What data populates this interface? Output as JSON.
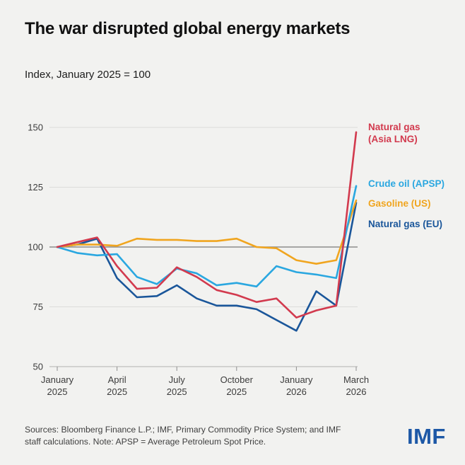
{
  "header": {
    "title": "The war disrupted global energy markets",
    "subtitle": "Index, January 2025 = 100"
  },
  "chart_data": {
    "type": "line",
    "title": "The war disrupted global energy markets",
    "subtitle": "Index, January 2025 = 100",
    "ylim": [
      50,
      150
    ],
    "y_ticks": [
      50,
      75,
      100,
      125,
      150
    ],
    "baseline_value": 100,
    "grid": "horizontal",
    "n_points": 16,
    "x_tick_positions": [
      0,
      3,
      6,
      9,
      12,
      15
    ],
    "x_tick_labels": [
      [
        "January",
        "2025"
      ],
      [
        "April",
        "2025"
      ],
      [
        "July",
        "2025"
      ],
      [
        "October",
        "2025"
      ],
      [
        "January",
        "2026"
      ],
      [
        "March",
        "2026"
      ]
    ],
    "legend_position": "right",
    "series": [
      {
        "name": "Natural gas (Asia LNG)",
        "color": "#d23a4e",
        "values": [
          100,
          102,
          104,
          92,
          82.5,
          83,
          91.5,
          87.5,
          82,
          80,
          77,
          78.5,
          70.5,
          73.5,
          75.5,
          148
        ]
      },
      {
        "name": "Crude oil (APSP)",
        "color": "#2aa7e0",
        "values": [
          100,
          97.5,
          96.5,
          97,
          87.5,
          84.5,
          91,
          89,
          84,
          85,
          83.5,
          92,
          89.5,
          88.5,
          87,
          125.5
        ]
      },
      {
        "name": "Gasoline (US)",
        "color": "#f0a51f",
        "values": [
          100,
          101,
          101,
          100.5,
          103.5,
          103,
          103,
          102.5,
          102.5,
          103.5,
          100,
          99.5,
          94.5,
          93,
          94.5,
          119.5
        ]
      },
      {
        "name": "Natural gas (EU)",
        "color": "#1a569a",
        "values": [
          100,
          101,
          103.5,
          87,
          79,
          79.5,
          84,
          78.5,
          75.5,
          75.5,
          74,
          69.5,
          65,
          81.5,
          75.5,
          118.5
        ]
      }
    ],
    "legend": [
      {
        "lines": [
          "Natural gas",
          "(Asia LNG)"
        ]
      },
      {
        "lines": [
          "Crude oil (APSP)"
        ]
      },
      {
        "lines": [
          "Gasoline (US)"
        ]
      },
      {
        "lines": [
          "Natural gas (EU)"
        ]
      }
    ]
  },
  "footer": {
    "source_line1": "Sources: Bloomberg Finance L.P.; IMF, Primary Commodity Price System; and IMF",
    "source_line2": "staff calculations. Note: APSP = Average Petroleum Spot Price.",
    "logo": "IMF"
  },
  "colors": {
    "background": "#f2f2f0",
    "baseline": "#8c8c8c",
    "gridline": "#dcdcda",
    "axis": "#b3b3b0",
    "tick": "#8f8f8f",
    "logo_blue": "#1d58a6"
  }
}
